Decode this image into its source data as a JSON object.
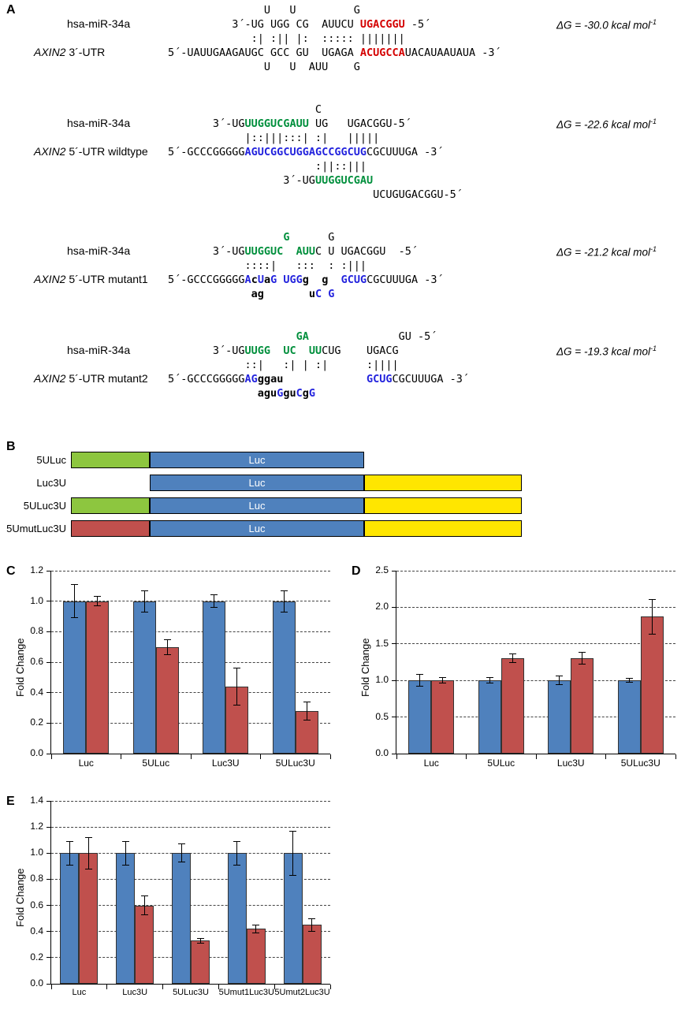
{
  "panels": {
    "A": "A",
    "B": "B",
    "C": "C",
    "D": "D",
    "E": "E"
  },
  "colors": {
    "bar_blue": "#4f81bd",
    "bar_red": "#c0504d",
    "seq_red": "#d40000",
    "seq_green": "#008f3c",
    "seq_blue": "#2222dd",
    "box_green": "#8dc63f",
    "box_yellow": "#ffe600",
    "box_blue": "#4f81bd",
    "box_red": "#c0504d"
  },
  "panelA": {
    "blocks": [
      {
        "mir_label": "hsa-miR-34a",
        "target_italic": "AXIN2",
        "target_rest": " 3´-UTR",
        "dg": "ΔG = -30.0 kcal mol",
        "dg_sup": "-1",
        "mir_row": 1,
        "target_row": 3,
        "lines": [
          [
            {
              "t": "               U   U         G",
              "c": "p"
            }
          ],
          [
            {
              "t": "          3´-UG UGG CG  AUUCU ",
              "c": "p"
            },
            {
              "t": "UGACGGU",
              "c": "r"
            },
            {
              "t": " -5´",
              "c": "p"
            }
          ],
          [
            {
              "t": "             :| :|| |:  ::::: |||||||",
              "c": "p"
            }
          ],
          [
            {
              "t": "5´-UAUUGAAGAUGC GCC GU  UGAGA ",
              "c": "p"
            },
            {
              "t": "ACUGCCA",
              "c": "r"
            },
            {
              "t": "UACAUAAUAUA -3´",
              "c": "p"
            }
          ],
          [
            {
              "t": "               U   U  AUU    G",
              "c": "p"
            }
          ]
        ]
      },
      {
        "mir_label": "hsa-miR-34a",
        "target_italic": "AXIN2",
        "target_rest": " 5´-UTR wildtype",
        "dg": "ΔG = -22.6 kcal mol",
        "dg_sup": "-1",
        "mir_row": 1,
        "target_row": 3,
        "lines": [
          [
            {
              "t": "                       C",
              "c": "p"
            }
          ],
          [
            {
              "t": "       3´-UG",
              "c": "p"
            },
            {
              "t": "UUGGUCGAUU",
              "c": "g"
            },
            {
              "t": " UG   UGACGGU-5´",
              "c": "p"
            }
          ],
          [
            {
              "t": "            |::|||:::| :|   |||||",
              "c": "p"
            }
          ],
          [
            {
              "t": "5´-GCCCGGGGG",
              "c": "p"
            },
            {
              "t": "AGUCGGCUGGAGCCGGCUG",
              "c": "b"
            },
            {
              "t": "CGCUUUGA -3´",
              "c": "p"
            }
          ],
          [
            {
              "t": "                       :||::|||",
              "c": "p"
            }
          ],
          [
            {
              "t": "                  3´-UG",
              "c": "p"
            },
            {
              "t": "UUGGUCGAU",
              "c": "g"
            }
          ],
          [
            {
              "t": "                                UCUGUGACGGU-5´",
              "c": "p"
            }
          ]
        ]
      },
      {
        "mir_label": "hsa-miR-34a",
        "target_italic": "AXIN2",
        "target_rest": " 5´-UTR mutant1",
        "dg": "ΔG = -21.2 kcal mol",
        "dg_sup": "-1",
        "mir_row": 1,
        "target_row": 3,
        "lines": [
          [
            {
              "t": "                  ",
              "c": "p"
            },
            {
              "t": "G",
              "c": "g"
            },
            {
              "t": "      G",
              "c": "p"
            }
          ],
          [
            {
              "t": "       3´-UG",
              "c": "p"
            },
            {
              "t": "UUGGUC",
              "c": "g"
            },
            {
              "t": "  ",
              "c": "p"
            },
            {
              "t": "AUU",
              "c": "g"
            },
            {
              "t": "C U UGACGGU  -5´",
              "c": "p"
            }
          ],
          [
            {
              "t": "            ::::|   :::  : :|||",
              "c": "p"
            }
          ],
          [
            {
              "t": "5´-GCCCGGGGG",
              "c": "p"
            },
            {
              "t": "A",
              "c": "b"
            },
            {
              "t": "c",
              "c": "m"
            },
            {
              "t": "U",
              "c": "b"
            },
            {
              "t": "a",
              "c": "m"
            },
            {
              "t": "G",
              "c": "b"
            },
            {
              "t": " ",
              "c": "p"
            },
            {
              "t": "UGG",
              "c": "b"
            },
            {
              "t": "g",
              "c": "m"
            },
            {
              "t": "  ",
              "c": "p"
            },
            {
              "t": "g",
              "c": "m"
            },
            {
              "t": "  ",
              "c": "p"
            },
            {
              "t": "GCUG",
              "c": "b"
            },
            {
              "t": "CGCUUUGA -3´",
              "c": "p"
            }
          ],
          [
            {
              "t": "             ",
              "c": "p"
            },
            {
              "t": "ag",
              "c": "m"
            },
            {
              "t": "       ",
              "c": "p"
            },
            {
              "t": "u",
              "c": "m"
            },
            {
              "t": "C",
              "c": "b"
            },
            {
              "t": " ",
              "c": "p"
            },
            {
              "t": "G",
              "c": "b"
            }
          ]
        ]
      },
      {
        "mir_label": "hsa-miR-34a",
        "target_italic": "AXIN2",
        "target_rest": " 5´-UTR mutant2",
        "dg": "ΔG = -19.3 kcal mol",
        "dg_sup": "-1",
        "mir_row": 1,
        "target_row": 3,
        "lines": [
          [
            {
              "t": "                    ",
              "c": "p"
            },
            {
              "t": "GA",
              "c": "g"
            },
            {
              "t": "              GU -5´",
              "c": "p"
            }
          ],
          [
            {
              "t": "       3´-UG",
              "c": "p"
            },
            {
              "t": "UUGG",
              "c": "g"
            },
            {
              "t": "  ",
              "c": "p"
            },
            {
              "t": "UC",
              "c": "g"
            },
            {
              "t": "  ",
              "c": "p"
            },
            {
              "t": "UU",
              "c": "g"
            },
            {
              "t": "CUG    UGACG",
              "c": "p"
            }
          ],
          [
            {
              "t": "            ::|   :| | :|      :||||",
              "c": "p"
            }
          ],
          [
            {
              "t": "5´-GCCCGGGGG",
              "c": "p"
            },
            {
              "t": "AG",
              "c": "b"
            },
            {
              "t": "ggau",
              "c": "m"
            },
            {
              "t": "             ",
              "c": "p"
            },
            {
              "t": "GCUG",
              "c": "b"
            },
            {
              "t": "CGCUUUGA -3´",
              "c": "p"
            }
          ],
          [
            {
              "t": "              ",
              "c": "p"
            },
            {
              "t": "agu",
              "c": "m"
            },
            {
              "t": "G",
              "c": "b"
            },
            {
              "t": "gu",
              "c": "m"
            },
            {
              "t": "C",
              "c": "b"
            },
            {
              "t": "g",
              "c": "m"
            },
            {
              "t": "G",
              "c": "b"
            }
          ]
        ]
      }
    ]
  },
  "panelB": {
    "luc_label": "Luc",
    "rows": [
      {
        "label": "5ULuc",
        "slots": [
          "utr5",
          "luc",
          null
        ]
      },
      {
        "label": "Luc3U",
        "slots": [
          null,
          "luc",
          "utr3"
        ]
      },
      {
        "label": "5ULuc3U",
        "slots": [
          "utr5",
          "luc",
          "utr3"
        ]
      },
      {
        "label": "5UmutLuc3U",
        "slots": [
          "utr5mut",
          "luc",
          "utr3"
        ]
      }
    ]
  },
  "chart_data": [
    {
      "panel": "C",
      "type": "bar",
      "title": "",
      "xlabel": "",
      "ylabel": "Fold Change",
      "ylim": [
        0,
        1.2
      ],
      "yticks": [
        "0.0",
        "0.2",
        "0.4",
        "0.6",
        "0.8",
        "1.0",
        "1.2"
      ],
      "grid": "dashed-horizontal",
      "legend": "none",
      "categories": [
        "Luc",
        "5ULuc",
        "Luc3U",
        "5ULuc3U"
      ],
      "series": [
        {
          "color": "#4f81bd",
          "values": [
            1.0,
            1.0,
            1.0,
            1.0
          ],
          "errors": [
            0.11,
            0.07,
            0.04,
            0.07
          ]
        },
        {
          "color": "#c0504d",
          "values": [
            1.0,
            0.7,
            0.44,
            0.28
          ],
          "errors": [
            0.03,
            0.05,
            0.12,
            0.06
          ]
        }
      ]
    },
    {
      "panel": "D",
      "type": "bar",
      "title": "",
      "xlabel": "",
      "ylabel": "Fold Change",
      "ylim": [
        0,
        2.5
      ],
      "yticks": [
        "0.0",
        "0.5",
        "1.0",
        "1.5",
        "2.0",
        "2.5"
      ],
      "grid": "dashed-horizontal",
      "legend": "none",
      "categories": [
        "Luc",
        "5ULuc",
        "Luc3U",
        "5ULuc3U"
      ],
      "series": [
        {
          "color": "#4f81bd",
          "values": [
            1.0,
            1.0,
            1.0,
            1.0
          ],
          "errors": [
            0.08,
            0.04,
            0.06,
            0.03
          ]
        },
        {
          "color": "#c0504d",
          "values": [
            1.0,
            1.3,
            1.3,
            1.87
          ],
          "errors": [
            0.04,
            0.06,
            0.08,
            0.24
          ]
        }
      ]
    },
    {
      "panel": "E",
      "type": "bar",
      "title": "",
      "xlabel": "",
      "ylabel": "Fold Change",
      "ylim": [
        0,
        1.4
      ],
      "yticks": [
        "0.0",
        "0.2",
        "0.4",
        "0.6",
        "0.8",
        "1.0",
        "1.2",
        "1.4"
      ],
      "grid": "dashed-horizontal",
      "legend": "none",
      "categories": [
        "Luc",
        "Luc3U",
        "5ULuc3U",
        "5Umut1Luc3U",
        "5Umut2Luc3U"
      ],
      "series": [
        {
          "color": "#4f81bd",
          "values": [
            1.0,
            1.0,
            1.0,
            1.0,
            1.0
          ],
          "errors": [
            0.09,
            0.09,
            0.07,
            0.09,
            0.17
          ]
        },
        {
          "color": "#c0504d",
          "values": [
            1.0,
            0.6,
            0.33,
            0.42,
            0.45
          ],
          "errors": [
            0.12,
            0.07,
            0.02,
            0.03,
            0.05
          ]
        }
      ]
    }
  ]
}
